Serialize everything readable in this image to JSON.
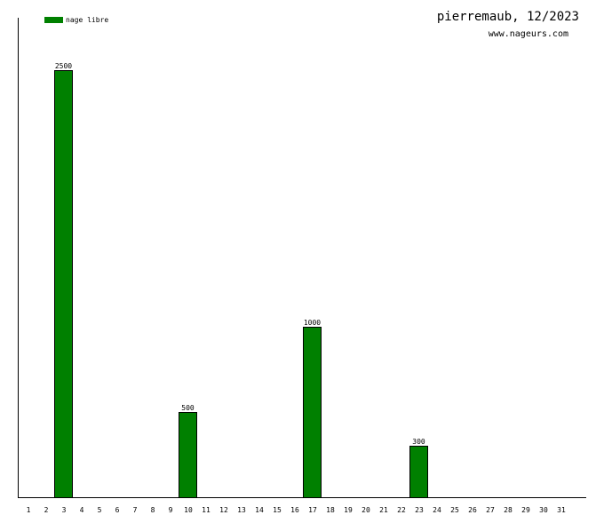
{
  "chart_data": {
    "type": "bar",
    "title": "pierremaub, 12/2023",
    "subtitle": "www.nageurs.com",
    "categories": [
      "1",
      "2",
      "3",
      "4",
      "5",
      "6",
      "7",
      "8",
      "9",
      "10",
      "11",
      "12",
      "13",
      "14",
      "15",
      "16",
      "17",
      "18",
      "19",
      "20",
      "21",
      "22",
      "23",
      "24",
      "25",
      "26",
      "27",
      "28",
      "29",
      "30",
      "31"
    ],
    "series": [
      {
        "name": "nage libre",
        "color": "#008000",
        "values": [
          0,
          0,
          2500,
          0,
          0,
          0,
          0,
          0,
          0,
          500,
          0,
          0,
          0,
          0,
          0,
          0,
          1000,
          0,
          0,
          0,
          0,
          0,
          300,
          0,
          0,
          0,
          0,
          0,
          0,
          0,
          0
        ]
      }
    ],
    "data_labels": [
      "2500",
      "500",
      "1000",
      "300"
    ],
    "ylim": [
      0,
      2800
    ],
    "grid": false,
    "legend_position": "top-left"
  }
}
